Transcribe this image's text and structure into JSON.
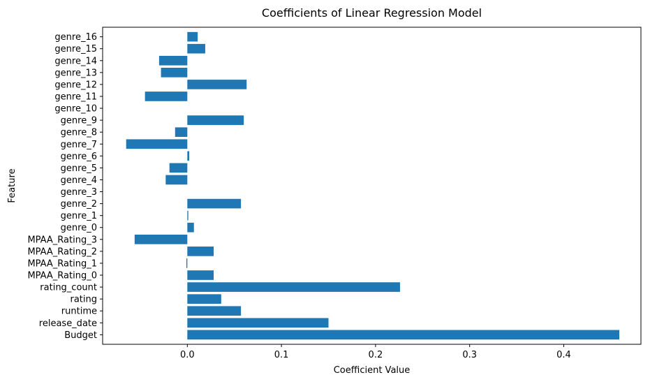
{
  "chart_data": {
    "type": "bar",
    "orientation": "horizontal",
    "title": "Coefficients of Linear Regression Model",
    "xlabel": "Coefficient Value",
    "ylabel": "Feature",
    "xlim": [
      -0.09,
      0.482
    ],
    "xticks": [
      0.0,
      0.1,
      0.2,
      0.3,
      0.4
    ],
    "xtick_labels": [
      "0.0",
      "0.1",
      "0.2",
      "0.3",
      "0.4"
    ],
    "grid": false,
    "bar_color": "#1f77b4",
    "categories": [
      "Budget",
      "release_date",
      "runtime",
      "rating",
      "rating_count",
      "MPAA_Rating_0",
      "MPAA_Rating_1",
      "MPAA_Rating_2",
      "MPAA_Rating_3",
      "genre_0",
      "genre_1",
      "genre_2",
      "genre_3",
      "genre_4",
      "genre_5",
      "genre_6",
      "genre_7",
      "genre_8",
      "genre_9",
      "genre_10",
      "genre_11",
      "genre_12",
      "genre_13",
      "genre_14",
      "genre_15",
      "genre_16"
    ],
    "values": [
      0.459,
      0.15,
      0.057,
      0.036,
      0.226,
      0.028,
      -0.001,
      0.028,
      -0.056,
      0.007,
      0.001,
      0.057,
      0.0,
      -0.023,
      -0.019,
      0.002,
      -0.065,
      -0.013,
      0.06,
      0.0,
      -0.045,
      0.063,
      -0.028,
      -0.03,
      0.019,
      0.011
    ]
  }
}
